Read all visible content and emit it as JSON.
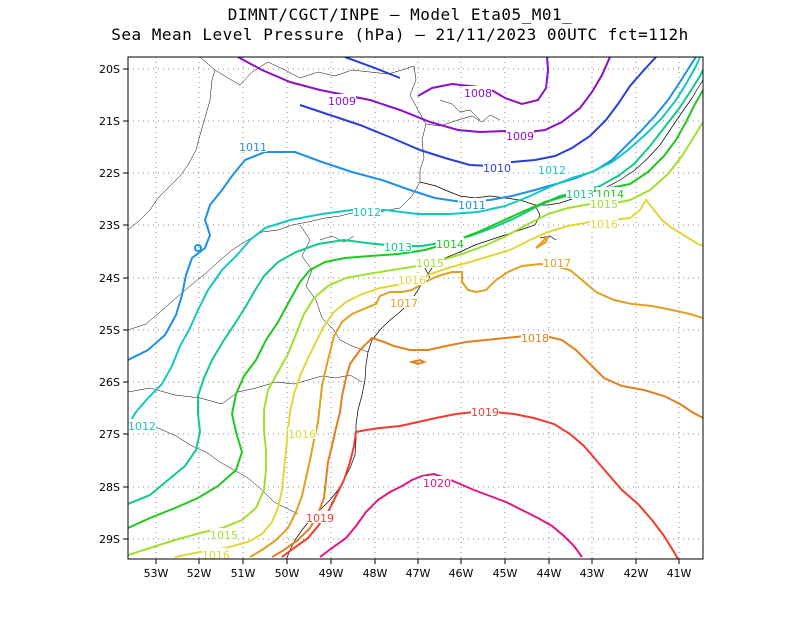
{
  "title_line1": "DIMNT/CGCT/INPE –  Model Eta05_M01_",
  "title_line2": "Sea Mean Level Pressure (hPa) – 21/11/2023 00UTC fct=112h",
  "x_ticks": [
    "53W",
    "52W",
    "51W",
    "50W",
    "49W",
    "48W",
    "47W",
    "46W",
    "45W",
    "44W",
    "43W",
    "42W",
    "41W"
  ],
  "y_ticks": [
    "20S",
    "21S",
    "22S",
    "23S",
    "24S",
    "25S",
    "26S",
    "27S",
    "28S",
    "29S"
  ],
  "isobars": [
    {
      "level": 1008,
      "color": "#8b10c8"
    },
    {
      "level": 1009,
      "color": "#8b10c8"
    },
    {
      "level": 1010,
      "color": "#2a3fd6"
    },
    {
      "level": 1011,
      "color": "#1e90e8"
    },
    {
      "level": 1012,
      "color": "#14c8c0"
    },
    {
      "level": 1013,
      "color": "#12c890"
    },
    {
      "level": 1014,
      "color": "#1ec81e"
    },
    {
      "level": 1015,
      "color": "#a0e030"
    },
    {
      "level": 1016,
      "color": "#e0d838"
    },
    {
      "level": 1017,
      "color": "#e0a020"
    },
    {
      "level": 1018,
      "color": "#e08020"
    },
    {
      "level": 1019,
      "color": "#f03c30"
    },
    {
      "level": 1020,
      "color": "#e01880"
    }
  ],
  "labels": [
    {
      "text": "1008",
      "color": "#8b10c8"
    },
    {
      "text": "1009",
      "color": "#8b10c8"
    },
    {
      "text": "1009",
      "color": "#8b10c8"
    },
    {
      "text": "1010",
      "color": "#2a3fd6"
    },
    {
      "text": "1011",
      "color": "#1e90e8"
    },
    {
      "text": "1011",
      "color": "#1e90e8"
    },
    {
      "text": "1012",
      "color": "#14c8c0"
    },
    {
      "text": "1012",
      "color": "#14c8c0"
    },
    {
      "text": "1012",
      "color": "#14c8c0"
    },
    {
      "text": "1013",
      "color": "#12c890"
    },
    {
      "text": "1013",
      "color": "#12c890"
    },
    {
      "text": "1014",
      "color": "#1ec81e"
    },
    {
      "text": "1014",
      "color": "#1ec81e"
    },
    {
      "text": "1015",
      "color": "#a0e030"
    },
    {
      "text": "1015",
      "color": "#a0e030"
    },
    {
      "text": "1015",
      "color": "#a0e030"
    },
    {
      "text": "1016",
      "color": "#e0d838"
    },
    {
      "text": "1016",
      "color": "#e0d838"
    },
    {
      "text": "1016",
      "color": "#e0d838"
    },
    {
      "text": "1016",
      "color": "#e0d838"
    },
    {
      "text": "1017",
      "color": "#e0a020"
    },
    {
      "text": "1017",
      "color": "#e0a020"
    },
    {
      "text": "1018",
      "color": "#e08020"
    },
    {
      "text": "1019",
      "color": "#f03c30"
    },
    {
      "text": "1019",
      "color": "#f03c30"
    },
    {
      "text": "1020",
      "color": "#e01880"
    }
  ]
}
